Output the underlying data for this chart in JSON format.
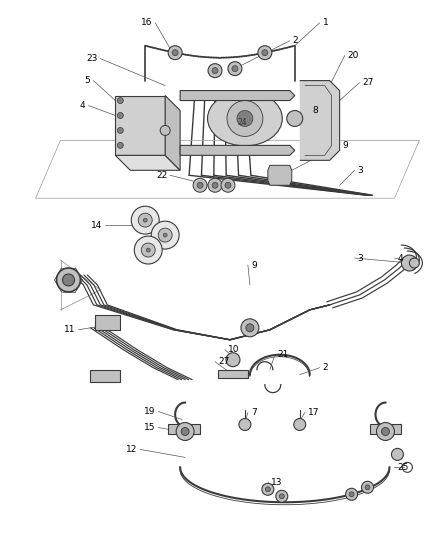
{
  "bg_color": "#ffffff",
  "line_color": "#3a3a3a",
  "label_color": "#000000",
  "fig_width": 4.38,
  "fig_height": 5.33,
  "dpi": 100,
  "gray_fill": "#b0b0b0",
  "gray_light": "#d0d0d0",
  "gray_dark": "#808080",
  "gray_mid": "#c0c0c0"
}
